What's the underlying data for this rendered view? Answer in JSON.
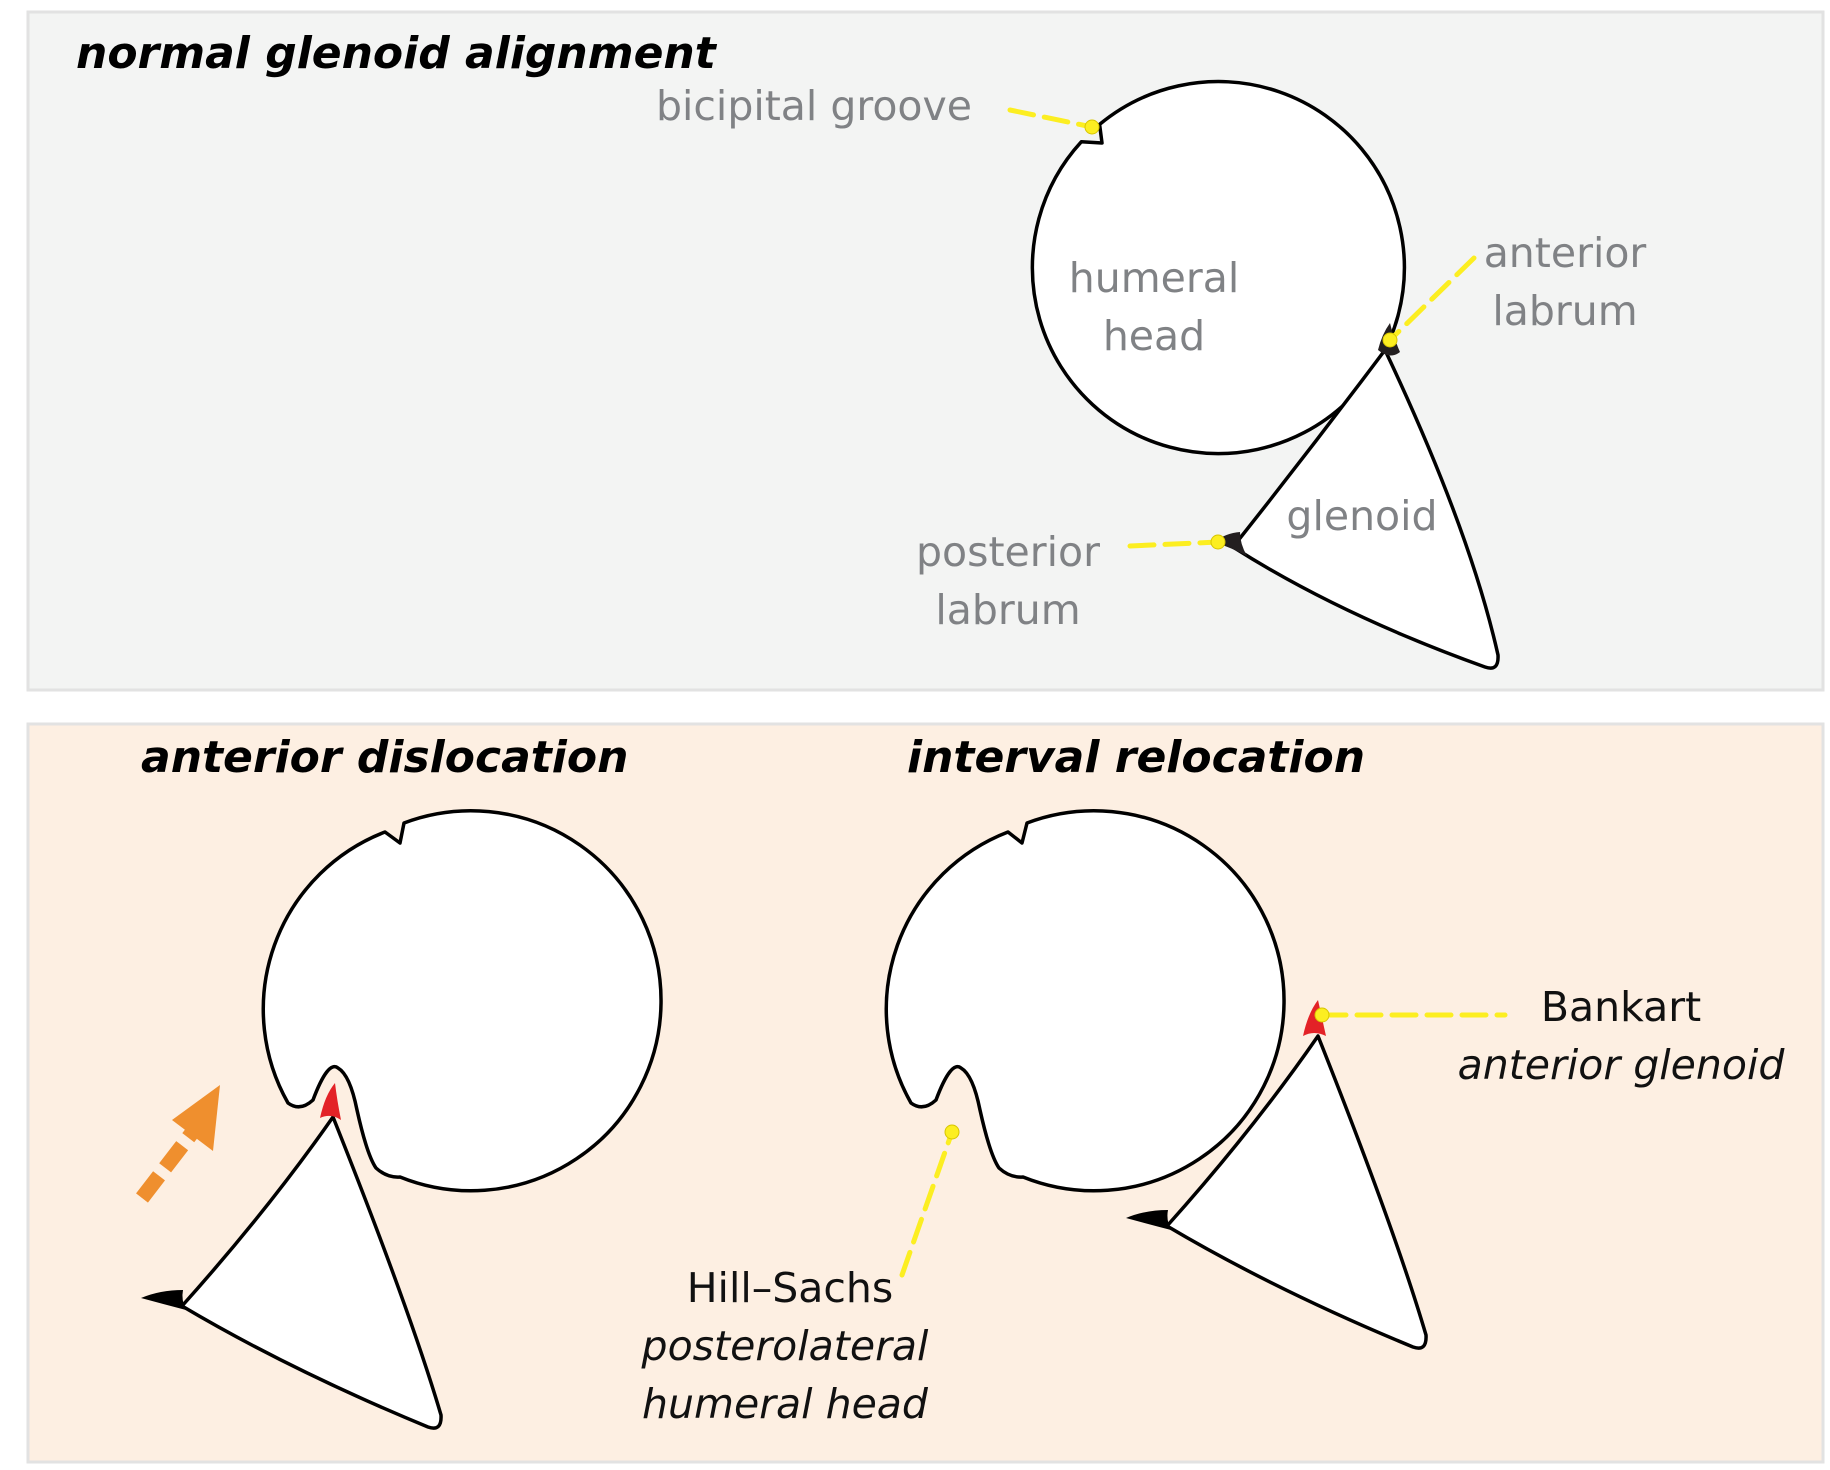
{
  "colors": {
    "top_panel_bg": "#f3f4f3",
    "bottom_panel_bg": "#fdefe2",
    "panel_border": "#e2e2e2",
    "leader_yellow": "#fcee21",
    "lesion_red": "#e32227",
    "arrow_orange": "#ef8f2e",
    "label_gray": "#808285"
  },
  "top_panel": {
    "title": "normal glenoid alignment",
    "labels": {
      "bicipital_groove": "bicipital groove",
      "humeral_head_1": "humeral",
      "humeral_head_2": "head",
      "anterior_labrum_1": "anterior",
      "anterior_labrum_2": "labrum",
      "glenoid": "glenoid",
      "posterior_labrum_1": "posterior",
      "posterior_labrum_2": "labrum"
    }
  },
  "bottom_panel": {
    "left_title": "anterior dislocation",
    "right_title": "interval relocation",
    "labels": {
      "bankart": "Bankart",
      "bankart_sub": "anterior glenoid",
      "hill_sachs": "Hill–Sachs",
      "hill_sachs_sub_1": "posterolateral",
      "hill_sachs_sub_2": "humeral head"
    }
  }
}
